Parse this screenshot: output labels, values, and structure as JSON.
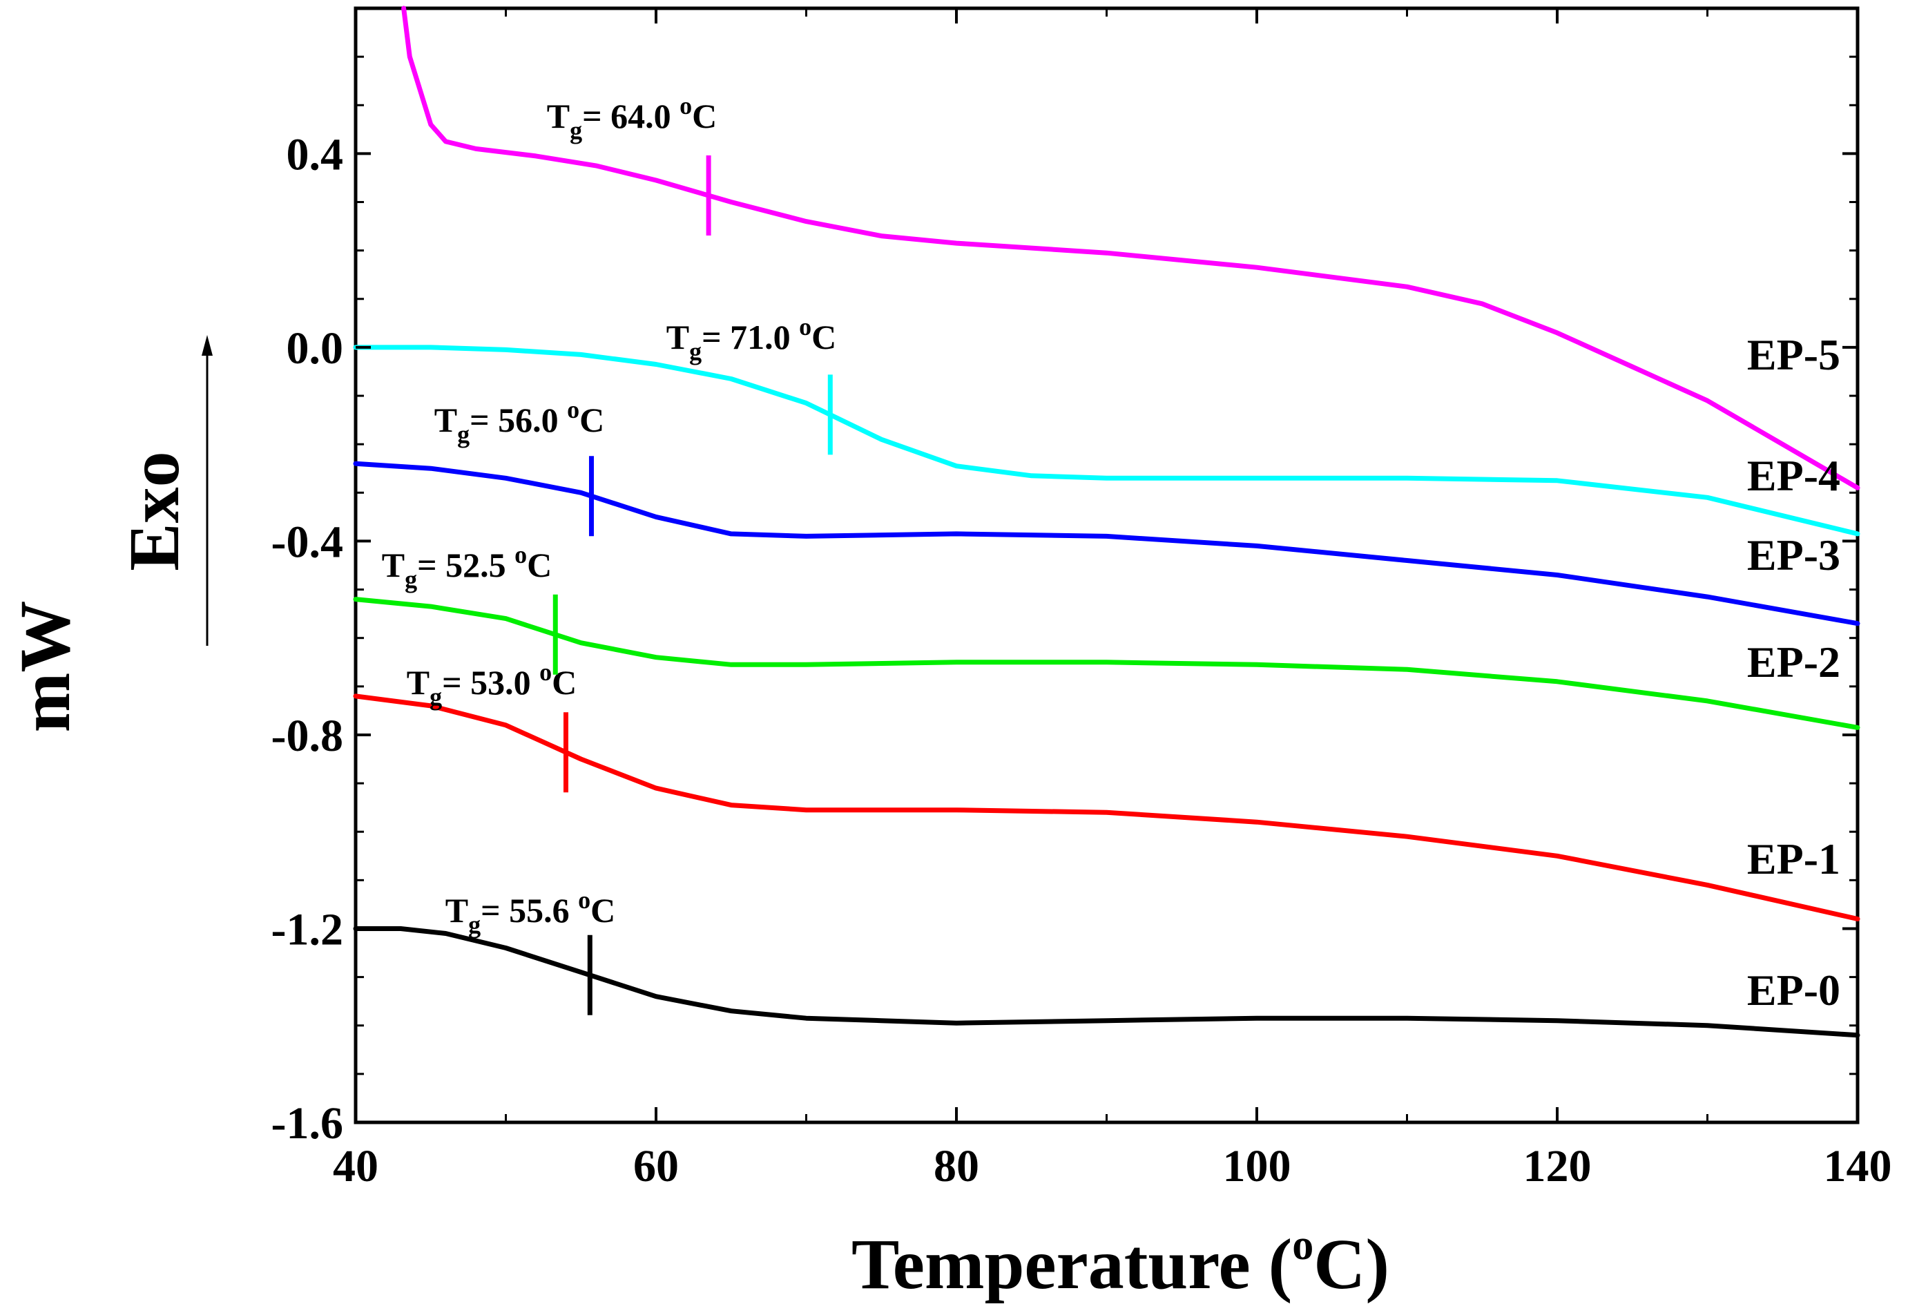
{
  "chart_data": {
    "type": "line",
    "title": "",
    "xlabel": "Temperature (",
    "xlabel_sup": "o",
    "xlabel_end": "C)",
    "ylabel": "mW",
    "ylabel_secondary": "Exo",
    "xlim": [
      40,
      140
    ],
    "ylim": [
      -1.6,
      0.7
    ],
    "x_ticks": [
      40,
      60,
      80,
      100,
      120,
      140
    ],
    "y_ticks": [
      -1.6,
      -1.2,
      -0.8,
      -0.4,
      0.0,
      0.4
    ],
    "x_tick_labels": [
      "40",
      "60",
      "80",
      "100",
      "120",
      "140"
    ],
    "y_tick_labels": [
      "-1.6",
      "-1.2",
      "-0.8",
      "-0.4",
      "0.0",
      "0.4"
    ],
    "grid": false,
    "exo_arrow_direction": "up",
    "series": [
      {
        "name": "EP-0",
        "color": "#000000",
        "tg": {
          "x": 55.6,
          "y": -1.31,
          "prefix": "T",
          "sub": "g",
          "eq": "= 55.6 ",
          "sup": "o",
          "unit": "C"
        },
        "points": [
          [
            40,
            -1.2
          ],
          [
            43,
            -1.2
          ],
          [
            46,
            -1.21
          ],
          [
            50,
            -1.24
          ],
          [
            55,
            -1.29
          ],
          [
            60,
            -1.34
          ],
          [
            65,
            -1.37
          ],
          [
            70,
            -1.385
          ],
          [
            75,
            -1.39
          ],
          [
            80,
            -1.395
          ],
          [
            90,
            -1.39
          ],
          [
            100,
            -1.385
          ],
          [
            110,
            -1.385
          ],
          [
            120,
            -1.39
          ],
          [
            130,
            -1.4
          ],
          [
            140,
            -1.42
          ]
        ]
      },
      {
        "name": "EP-1",
        "color": "#ff0000",
        "tg": {
          "x": 54.0,
          "y": -0.84,
          "prefix": "T",
          "sub": "g",
          "eq": "= 53.0 ",
          "sup": "o",
          "unit": "C"
        },
        "points": [
          [
            40,
            -0.72
          ],
          [
            45,
            -0.74
          ],
          [
            50,
            -0.78
          ],
          [
            55,
            -0.85
          ],
          [
            60,
            -0.91
          ],
          [
            65,
            -0.945
          ],
          [
            70,
            -0.955
          ],
          [
            75,
            -0.955
          ],
          [
            80,
            -0.955
          ],
          [
            90,
            -0.96
          ],
          [
            100,
            -0.98
          ],
          [
            110,
            -1.01
          ],
          [
            120,
            -1.05
          ],
          [
            130,
            -1.11
          ],
          [
            140,
            -1.18
          ]
        ]
      },
      {
        "name": "EP-2",
        "color": "#00ee00",
        "tg": {
          "x": 53.3,
          "y": -0.59,
          "prefix": "T",
          "sub": "g",
          "eq": "= 52.5 ",
          "sup": "o",
          "unit": "C"
        },
        "points": [
          [
            40,
            -0.52
          ],
          [
            45,
            -0.535
          ],
          [
            50,
            -0.56
          ],
          [
            55,
            -0.61
          ],
          [
            60,
            -0.64
          ],
          [
            65,
            -0.655
          ],
          [
            70,
            -0.655
          ],
          [
            80,
            -0.65
          ],
          [
            90,
            -0.65
          ],
          [
            100,
            -0.655
          ],
          [
            110,
            -0.665
          ],
          [
            120,
            -0.69
          ],
          [
            130,
            -0.73
          ],
          [
            140,
            -0.785
          ]
        ]
      },
      {
        "name": "EP-3",
        "color": "#0000ff",
        "tg": {
          "x": 55.7,
          "y": -0.31,
          "prefix": "T",
          "sub": "g",
          "eq": "= 56.0 ",
          "sup": "o",
          "unit": "C"
        },
        "points": [
          [
            40,
            -0.24
          ],
          [
            45,
            -0.25
          ],
          [
            50,
            -0.27
          ],
          [
            55,
            -0.3
          ],
          [
            60,
            -0.35
          ],
          [
            65,
            -0.385
          ],
          [
            70,
            -0.39
          ],
          [
            80,
            -0.385
          ],
          [
            90,
            -0.39
          ],
          [
            100,
            -0.41
          ],
          [
            110,
            -0.44
          ],
          [
            120,
            -0.47
          ],
          [
            130,
            -0.515
          ],
          [
            140,
            -0.57
          ]
        ]
      },
      {
        "name": "EP-4",
        "color": "#00ffff",
        "tg": {
          "x": 71.6,
          "y": -0.15,
          "prefix": "T",
          "sub": "g",
          "eq": "= 71.0 ",
          "sup": "o",
          "unit": "C"
        },
        "points": [
          [
            40,
            0.0
          ],
          [
            45,
            0.0
          ],
          [
            50,
            -0.005
          ],
          [
            55,
            -0.015
          ],
          [
            60,
            -0.035
          ],
          [
            65,
            -0.065
          ],
          [
            70,
            -0.115
          ],
          [
            75,
            -0.19
          ],
          [
            80,
            -0.245
          ],
          [
            85,
            -0.265
          ],
          [
            90,
            -0.27
          ],
          [
            100,
            -0.27
          ],
          [
            110,
            -0.27
          ],
          [
            120,
            -0.275
          ],
          [
            130,
            -0.31
          ],
          [
            140,
            -0.385
          ]
        ]
      },
      {
        "name": "EP-5",
        "color": "#ff00ff",
        "tg": {
          "x": 63.5,
          "y": 0.31,
          "prefix": "T",
          "sub": "g",
          "eq": "= 64.0 ",
          "sup": "o",
          "unit": "C"
        },
        "points": [
          [
            43.2,
            0.7
          ],
          [
            43.6,
            0.6
          ],
          [
            44.2,
            0.54
          ],
          [
            45,
            0.46
          ],
          [
            46,
            0.425
          ],
          [
            48,
            0.41
          ],
          [
            52,
            0.395
          ],
          [
            56,
            0.375
          ],
          [
            60,
            0.345
          ],
          [
            65,
            0.3
          ],
          [
            70,
            0.26
          ],
          [
            75,
            0.23
          ],
          [
            80,
            0.215
          ],
          [
            90,
            0.195
          ],
          [
            100,
            0.165
          ],
          [
            110,
            0.125
          ],
          [
            115,
            0.09
          ],
          [
            120,
            0.03
          ],
          [
            125,
            -0.04
          ],
          [
            130,
            -0.11
          ],
          [
            135,
            -0.2
          ],
          [
            140,
            -0.29
          ]
        ]
      }
    ]
  }
}
